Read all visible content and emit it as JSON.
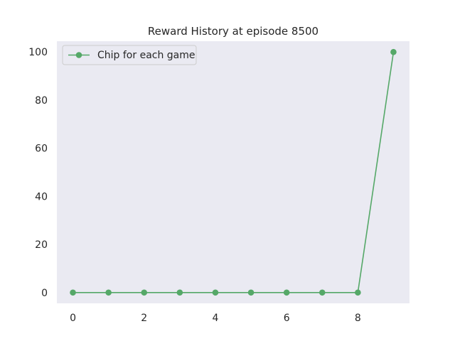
{
  "chart_data": {
    "type": "line",
    "title": "Reward History at episode 8500",
    "xlabel": "",
    "ylabel": "",
    "x": [
      0,
      1,
      2,
      3,
      4,
      5,
      6,
      7,
      8,
      9
    ],
    "series": [
      {
        "name": "Chip for each game",
        "values": [
          0,
          0,
          0,
          0,
          0,
          0,
          0,
          0,
          0,
          100
        ],
        "color": "#55a868",
        "marker": "circle"
      }
    ],
    "xlim": [
      -0.45,
      9.45
    ],
    "ylim": [
      -4.5,
      104.5
    ],
    "xticks": [
      0,
      2,
      4,
      6,
      8
    ],
    "yticks": [
      0,
      20,
      40,
      60,
      80,
      100
    ],
    "grid": false,
    "legend_position": "top-left",
    "background_color": "#eaeaf2"
  }
}
